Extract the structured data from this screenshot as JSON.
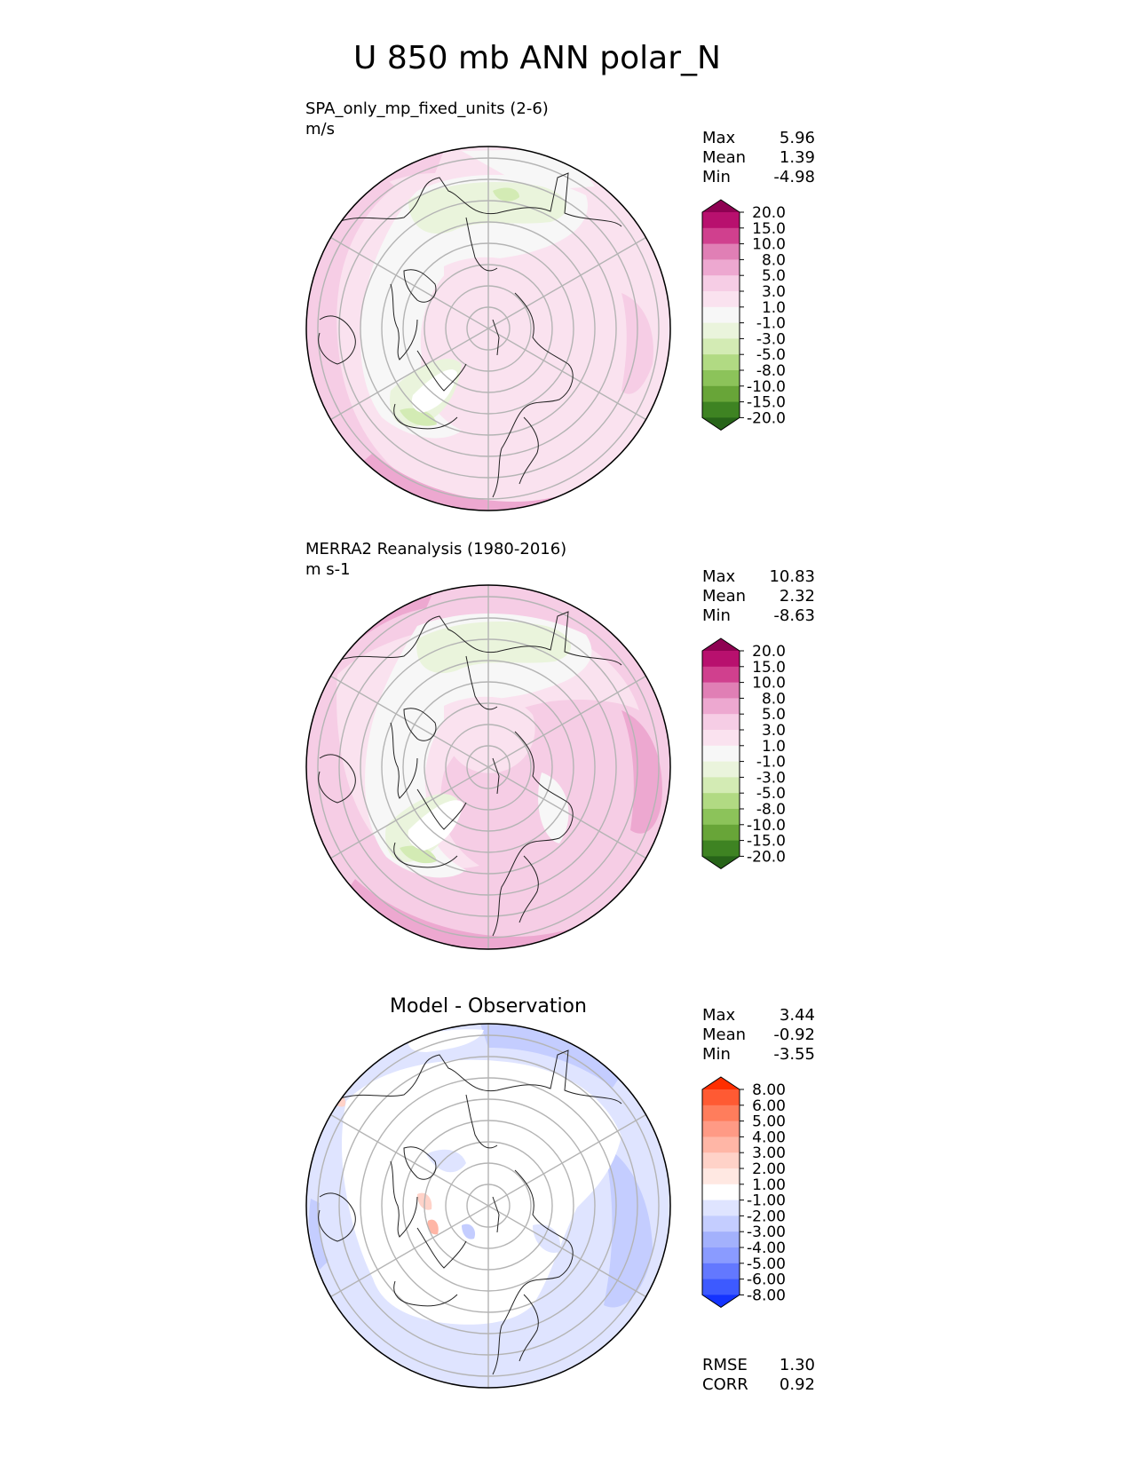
{
  "figure": {
    "title": "U 850 mb ANN polar_N"
  },
  "panels": [
    {
      "id": "test",
      "name": "SPA_only_mp_fixed_units (2-6)",
      "units": "m/s",
      "stats": [
        {
          "label": "Max",
          "value": "5.96"
        },
        {
          "label": "Mean",
          "value": "1.39"
        },
        {
          "label": "Min",
          "value": "-4.98"
        }
      ],
      "colorbar": {
        "labels": [
          "20.0",
          "15.0",
          "10.0",
          "8.0",
          "5.0",
          "3.0",
          "1.0",
          "-1.0",
          "-3.0",
          "-5.0",
          "-8.0",
          "-10.0",
          "-15.0",
          "-20.0"
        ],
        "colors": [
          "#8e0152",
          "#b8106e",
          "#d0408e",
          "#e07fb5",
          "#eda8d0",
          "#f6cde5",
          "#fae2ef",
          "#f7f7f7",
          "#eaf4dc",
          "#d3ebb4",
          "#b1da83",
          "#8cc35a",
          "#68a538",
          "#3e8322",
          "#276419"
        ]
      }
    },
    {
      "id": "reference",
      "name": "MERRA2 Reanalysis (1980-2016)",
      "units": "m s-1",
      "stats": [
        {
          "label": "Max",
          "value": "10.83"
        },
        {
          "label": "Mean",
          "value": "2.32"
        },
        {
          "label": "Min",
          "value": "-8.63"
        }
      ],
      "colorbar": {
        "labels": [
          "20.0",
          "15.0",
          "10.0",
          "8.0",
          "5.0",
          "3.0",
          "1.0",
          "-1.0",
          "-3.0",
          "-5.0",
          "-8.0",
          "-10.0",
          "-15.0",
          "-20.0"
        ],
        "colors": [
          "#8e0152",
          "#b8106e",
          "#d0408e",
          "#e07fb5",
          "#eda8d0",
          "#f6cde5",
          "#fae2ef",
          "#f7f7f7",
          "#eaf4dc",
          "#d3ebb4",
          "#b1da83",
          "#8cc35a",
          "#68a538",
          "#3e8322",
          "#276419"
        ]
      }
    },
    {
      "id": "diff",
      "title": "Model - Observation",
      "stats": [
        {
          "label": "Max",
          "value": "3.44"
        },
        {
          "label": "Mean",
          "value": "-0.92"
        },
        {
          "label": "Min",
          "value": "-3.55"
        }
      ],
      "colorbar": {
        "labels": [
          "8.00",
          "6.00",
          "5.00",
          "4.00",
          "3.00",
          "2.00",
          "1.00",
          "-1.00",
          "-2.00",
          "-3.00",
          "-4.00",
          "-5.00",
          "-6.00",
          "-8.00"
        ],
        "colors": [
          "#ff2e00",
          "#ff5a33",
          "#ff7d5c",
          "#ff9a85",
          "#ffb6a6",
          "#ffd2c8",
          "#ffe8e2",
          "#ffffff",
          "#dfe4ff",
          "#c4cdff",
          "#a3b1fc",
          "#8a9bff",
          "#6378ff",
          "#3d5aff",
          "#1433ff"
        ]
      },
      "footer_stats": [
        {
          "label": "RMSE",
          "value": "1.30"
        },
        {
          "label": "CORR",
          "value": "0.92"
        }
      ]
    }
  ]
}
